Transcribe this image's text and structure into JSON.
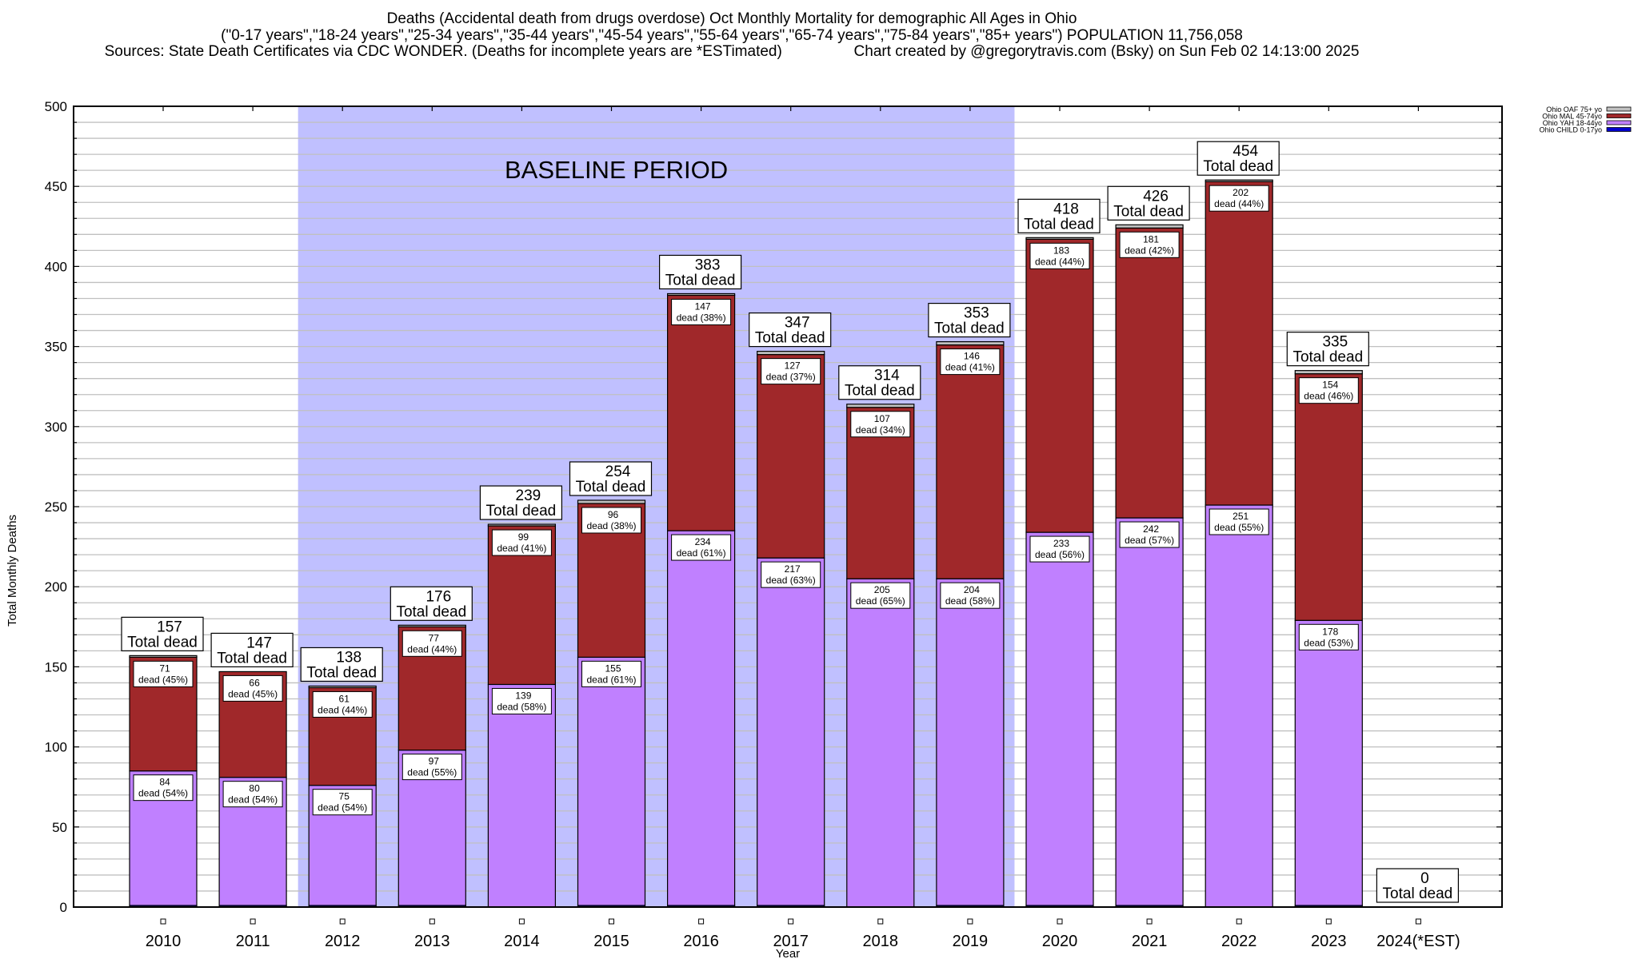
{
  "chart_data": {
    "type": "bar",
    "stacked": true,
    "title": "Deaths (Accidental death from drugs overdose) Oct Monthly Mortality for demographic All Ages in Ohio",
    "subtitle": "(\"0-17 years\",\"18-24 years\",\"25-34 years\",\"35-44 years\",\"45-54 years\",\"55-64 years\",\"65-74 years\",\"75-84 years\",\"85+ years\") POPULATION 11,756,058",
    "source_line": "Sources: State Death Certificates via CDC WONDER. (Deaths for incomplete years are *ESTimated)                 Chart created by @gregorytravis.com (Bsky) on Sun Feb 02 14:13:00 2025",
    "xlabel": "Year",
    "ylabel": "Total Monthly Deaths",
    "ylim": [
      0,
      500
    ],
    "yticks": [
      0,
      50,
      100,
      150,
      200,
      250,
      300,
      350,
      400,
      450,
      500
    ],
    "minor_grid_step": 10,
    "grid": true,
    "legend_position": "top-right (outside plot)",
    "categories": [
      "2010",
      "2011",
      "2012",
      "2013",
      "2014",
      "2015",
      "2016",
      "2017",
      "2018",
      "2019",
      "2020",
      "2021",
      "2022",
      "2023",
      "2024(*EST)"
    ],
    "totals": [
      157,
      147,
      138,
      176,
      239,
      254,
      383,
      347,
      314,
      353,
      418,
      426,
      454,
      335,
      0
    ],
    "total_label_suffix": "Total dead",
    "segment_label_word": "dead",
    "series": [
      {
        "name": "Ohio CHILD 0-17yo",
        "color": "#0000cc",
        "values": [
          1,
          1,
          1,
          1,
          0,
          1,
          1,
          1,
          0,
          1,
          1,
          1,
          0,
          1,
          0
        ],
        "labeled": false
      },
      {
        "name": "Ohio YAH 18-44yo",
        "color": "#c080ff",
        "values": [
          84,
          80,
          75,
          97,
          139,
          155,
          234,
          217,
          205,
          204,
          233,
          242,
          251,
          178,
          0
        ],
        "percents": [
          54,
          54,
          54,
          55,
          58,
          61,
          61,
          63,
          65,
          58,
          56,
          57,
          55,
          53,
          null
        ],
        "labeled": true
      },
      {
        "name": "Ohio MAL 45-74yo",
        "color": "#a0282a",
        "values": [
          71,
          66,
          61,
          77,
          99,
          96,
          147,
          127,
          107,
          146,
          183,
          181,
          202,
          154,
          0
        ],
        "percents": [
          45,
          45,
          44,
          44,
          41,
          38,
          38,
          37,
          34,
          41,
          44,
          42,
          44,
          46,
          null
        ],
        "labeled": true
      },
      {
        "name": "Ohio OAF 75+ yo",
        "color": "#c0c0c0",
        "values": [
          1,
          0,
          1,
          1,
          1,
          2,
          1,
          2,
          2,
          2,
          1,
          2,
          1,
          2,
          0
        ],
        "labeled": false
      }
    ],
    "legend_order": [
      "Ohio OAF 75+ yo",
      "Ohio MAL 45-74yo",
      "Ohio YAH 18-44yo",
      "Ohio CHILD 0-17yo"
    ],
    "annotations": [
      {
        "type": "shaded-region",
        "label": "BASELINE PERIOD",
        "from_category": "2012",
        "to_category": "2019",
        "color": "#c0c0ff"
      }
    ]
  }
}
